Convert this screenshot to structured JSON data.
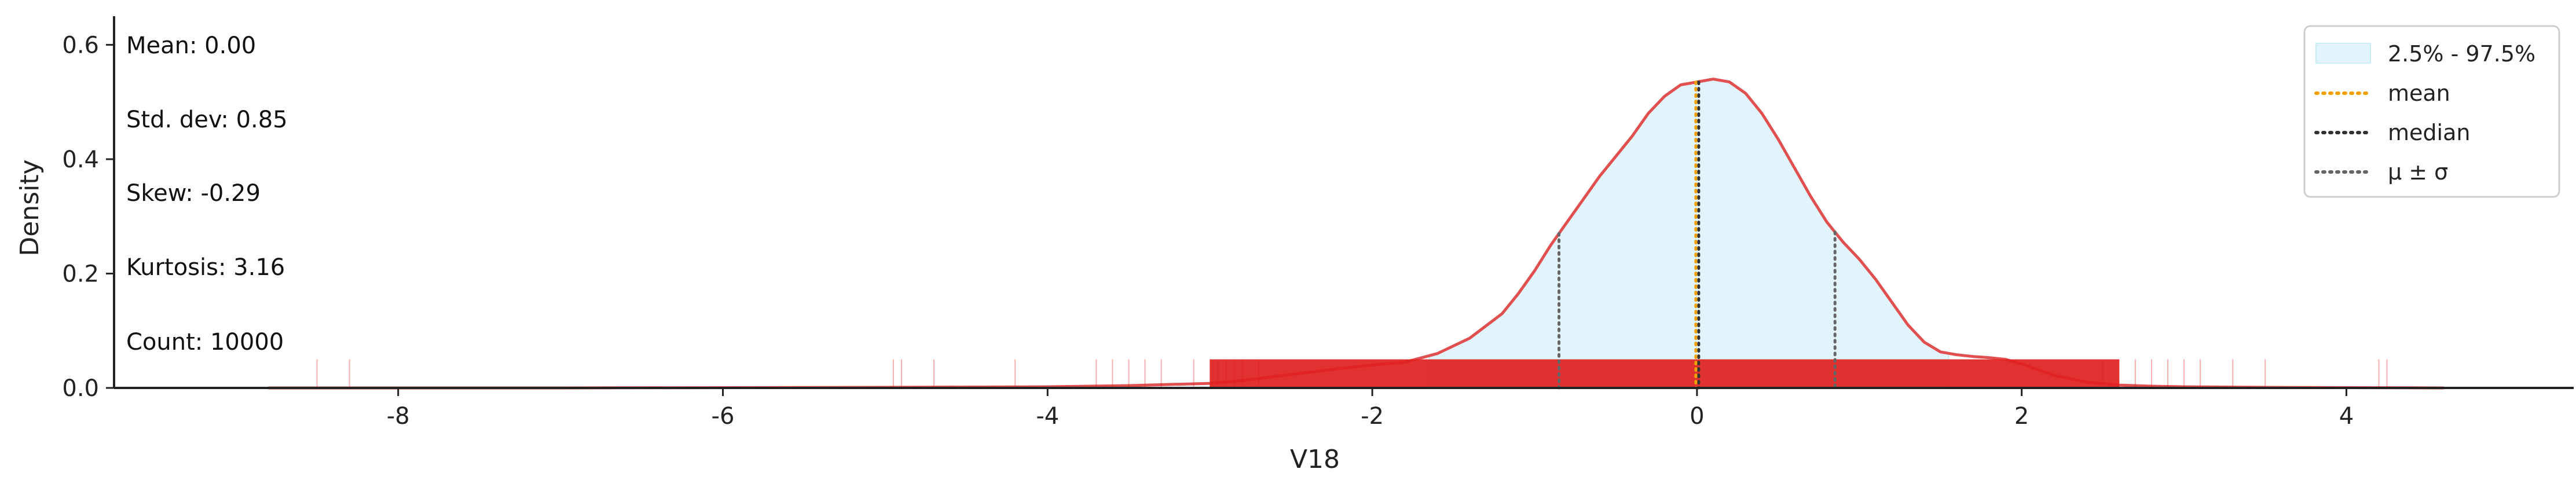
{
  "chart_data": {
    "type": "area",
    "xlabel": "V18",
    "ylabel": "Density",
    "xlim": [
      -9.75,
      5.4
    ],
    "ylim": [
      0,
      0.65
    ],
    "x_ticks": [
      -8,
      -6,
      -4,
      -2,
      0,
      2,
      4
    ],
    "y_ticks": [
      0.0,
      0.2,
      0.4,
      0.6
    ],
    "x_tick_labels": [
      "-8",
      "-6",
      "-4",
      "-2",
      "0",
      "2",
      "4"
    ],
    "y_tick_labels": [
      "0.0",
      "0.2",
      "0.4",
      "0.6"
    ],
    "grid": false,
    "legend_position": "top-right",
    "series": [
      {
        "name": "density",
        "color": "#e05050",
        "x": [
          -8.8,
          -7,
          -5,
          -4,
          -3.5,
          -3,
          -2.8,
          -2.6,
          -2.4,
          -2.2,
          -2.0,
          -1.8,
          -1.6,
          -1.4,
          -1.2,
          -1.1,
          -1.0,
          -0.9,
          -0.8,
          -0.7,
          -0.6,
          -0.5,
          -0.4,
          -0.3,
          -0.2,
          -0.1,
          0.0,
          0.1,
          0.2,
          0.3,
          0.4,
          0.5,
          0.6,
          0.7,
          0.8,
          0.9,
          1.0,
          1.1,
          1.2,
          1.3,
          1.4,
          1.5,
          1.6,
          1.7,
          1.8,
          1.9,
          2.0,
          2.2,
          2.4,
          2.6,
          2.8,
          3.0,
          3.5,
          4.0,
          4.6
        ],
        "y": [
          0.0,
          0.0,
          0.001,
          0.002,
          0.004,
          0.008,
          0.013,
          0.02,
          0.027,
          0.034,
          0.04,
          0.045,
          0.06,
          0.087,
          0.13,
          0.165,
          0.205,
          0.25,
          0.29,
          0.33,
          0.37,
          0.405,
          0.44,
          0.48,
          0.51,
          0.53,
          0.535,
          0.54,
          0.535,
          0.515,
          0.48,
          0.435,
          0.385,
          0.335,
          0.29,
          0.255,
          0.225,
          0.19,
          0.15,
          0.11,
          0.08,
          0.063,
          0.058,
          0.055,
          0.053,
          0.05,
          0.042,
          0.022,
          0.01,
          0.005,
          0.003,
          0.002,
          0.001,
          0.0005,
          0.0
        ]
      }
    ],
    "interval": {
      "name": "2.5% - 97.5%",
      "from": -1.65,
      "to": 1.55,
      "color": "#e2f4fb",
      "edge_color": "#c9ecf9"
    },
    "mean": {
      "name": "mean",
      "value": 0.0,
      "color": "#f0a000"
    },
    "median": {
      "name": "median",
      "value": 0.0,
      "color": "#333333"
    },
    "sigma_band": {
      "name": "μ ± σ",
      "values": [
        -0.85,
        0.85
      ],
      "color": "#666666"
    },
    "rug": {
      "color": "#e02020",
      "sparse_x": [
        -8.5,
        -8.3,
        -4.95,
        -4.9,
        -4.7,
        -4.2,
        -3.7,
        -3.6,
        -3.5,
        -3.4,
        -3.3,
        -3.1,
        -3.0,
        -2.95,
        -2.9,
        -2.85,
        -2.8,
        -2.7,
        2.5,
        2.6,
        2.7,
        2.8,
        2.9,
        3.0,
        3.1,
        3.3,
        3.5,
        4.2,
        4.25
      ],
      "dense_from": -3.0,
      "dense_to": 2.6
    },
    "stats": [
      "Mean: 0.00",
      "Std. dev: 0.85",
      "Skew: -0.29",
      "Kurtosis: 3.16",
      "Count: 10000"
    ],
    "legend": [
      {
        "label": "2.5% - 97.5%",
        "kind": "patch",
        "color": "#e2f4fb"
      },
      {
        "label": "mean",
        "kind": "line",
        "color": "#f0a000"
      },
      {
        "label": "median",
        "kind": "line",
        "color": "#333333"
      },
      {
        "label": "μ ± σ",
        "kind": "line",
        "color": "#666666"
      }
    ]
  }
}
